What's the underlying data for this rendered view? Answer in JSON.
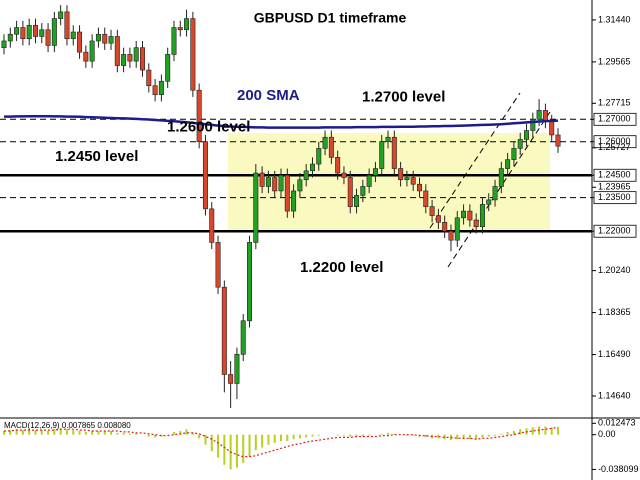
{
  "chart_data": [
    {
      "type": "candlestick",
      "title": "GBPUSD D1 timeframe",
      "up_color": "#22a022",
      "down_color": "#d9472b",
      "ylim": [
        1.1379,
        1.3233
      ],
      "yticks": [
        {
          "value": 1.3144,
          "label": "1.31440"
        },
        {
          "value": 1.29565,
          "label": "1.29565"
        },
        {
          "value": 1.27715,
          "label": "1.27715"
        },
        {
          "value": 1.27,
          "label": "1.27000"
        },
        {
          "value": 1.26,
          "label": "1.26000"
        },
        {
          "value": 1.25727,
          "label": "1.25727"
        },
        {
          "value": 1.245,
          "label": "1.24500"
        },
        {
          "value": 1.23965,
          "label": "1.23965"
        },
        {
          "value": 1.235,
          "label": "1.23500"
        },
        {
          "value": 1.22,
          "label": "1.22000"
        },
        {
          "value": 1.2024,
          "label": "1.20240"
        },
        {
          "value": 1.18365,
          "label": "1.18365"
        },
        {
          "value": 1.1649,
          "label": "1.16490"
        },
        {
          "value": 1.1464,
          "label": "1.14640"
        }
      ],
      "levels": [
        {
          "value": 1.27,
          "style": "dashed",
          "label": "1.2700 level"
        },
        {
          "value": 1.26,
          "style": "dashed",
          "label": "1.2600 level"
        },
        {
          "value": 1.245,
          "style": "solid",
          "label": "1.2450 level"
        },
        {
          "value": 1.235,
          "style": "dashed"
        },
        {
          "value": 1.22,
          "style": "solid",
          "label": "1.2200 level"
        }
      ],
      "sma": {
        "name": "200 SMA",
        "color": "#1c1c8c",
        "values": [
          1.2712,
          1.2712,
          1.2713,
          1.2713,
          1.2714,
          1.2714,
          1.2714,
          1.2714,
          1.2713,
          1.2713,
          1.2712,
          1.2712,
          1.2711,
          1.271,
          1.2709,
          1.2708,
          1.2707,
          1.2706,
          1.2705,
          1.2704,
          1.2703,
          1.2702,
          1.27,
          1.2699,
          1.2697,
          1.2695,
          1.2693,
          1.2691,
          1.2689,
          1.2687,
          1.2684,
          1.2681,
          1.2678,
          1.2675,
          1.2672,
          1.267,
          1.2668,
          1.2667,
          1.2666,
          1.2665,
          1.2664,
          1.2664,
          1.2663,
          1.2663,
          1.2663,
          1.2663,
          1.2663,
          1.2663,
          1.2663,
          1.2663,
          1.2663,
          1.2664,
          1.2664,
          1.2664,
          1.2664,
          1.2664,
          1.2665,
          1.2665,
          1.2665,
          1.2665,
          1.2666,
          1.2666,
          1.2666,
          1.2667,
          1.2667,
          1.2667,
          1.2668,
          1.2668,
          1.2669,
          1.2669,
          1.267,
          1.267,
          1.2671,
          1.2672,
          1.2673,
          1.2674,
          1.2675,
          1.2676,
          1.2677,
          1.2678,
          1.268,
          1.2682,
          1.2684,
          1.2686,
          1.2688,
          1.269,
          1.2692,
          1.2693,
          1.2694
        ]
      },
      "ohlc": [
        [
          1.302,
          1.308,
          1.299,
          1.305
        ],
        [
          1.305,
          1.311,
          1.302,
          1.308
        ],
        [
          1.308,
          1.314,
          1.305,
          1.311
        ],
        [
          1.311,
          1.314,
          1.303,
          1.306
        ],
        [
          1.306,
          1.315,
          1.303,
          1.312
        ],
        [
          1.312,
          1.315,
          1.304,
          1.307
        ],
        [
          1.307,
          1.313,
          1.304,
          1.31
        ],
        [
          1.31,
          1.313,
          1.3,
          1.303
        ],
        [
          1.303,
          1.318,
          1.3,
          1.315
        ],
        [
          1.315,
          1.321,
          1.312,
          1.318
        ],
        [
          1.318,
          1.321,
          1.303,
          1.306
        ],
        [
          1.306,
          1.312,
          1.303,
          1.309
        ],
        [
          1.309,
          1.312,
          1.297,
          1.3
        ],
        [
          1.3,
          1.303,
          1.293,
          1.296
        ],
        [
          1.296,
          1.308,
          1.293,
          1.305
        ],
        [
          1.305,
          1.311,
          1.302,
          1.308
        ],
        [
          1.308,
          1.311,
          1.301,
          1.304
        ],
        [
          1.304,
          1.31,
          1.301,
          1.307
        ],
        [
          1.307,
          1.31,
          1.291,
          1.294
        ],
        [
          1.294,
          1.302,
          1.291,
          1.299
        ],
        [
          1.299,
          1.302,
          1.293,
          1.296
        ],
        [
          1.296,
          1.305,
          1.293,
          1.302
        ],
        [
          1.302,
          1.305,
          1.289,
          1.292
        ],
        [
          1.292,
          1.295,
          1.282,
          1.285
        ],
        [
          1.285,
          1.288,
          1.278,
          1.281
        ],
        [
          1.281,
          1.29,
          1.278,
          1.287
        ],
        [
          1.287,
          1.302,
          1.284,
          1.299
        ],
        [
          1.299,
          1.314,
          1.296,
          1.311
        ],
        [
          1.311,
          1.314,
          1.307,
          1.31
        ],
        [
          1.31,
          1.319,
          1.307,
          1.315
        ],
        [
          1.315,
          1.318,
          1.28,
          1.283
        ],
        [
          1.283,
          1.286,
          1.257,
          1.26
        ],
        [
          1.26,
          1.263,
          1.227,
          1.23
        ],
        [
          1.23,
          1.233,
          1.212,
          1.215
        ],
        [
          1.215,
          1.218,
          1.192,
          1.195
        ],
        [
          1.195,
          1.198,
          1.148,
          1.156
        ],
        [
          1.156,
          1.162,
          1.141,
          1.152
        ],
        [
          1.152,
          1.168,
          1.145,
          1.165
        ],
        [
          1.165,
          1.183,
          1.162,
          1.18
        ],
        [
          1.18,
          1.218,
          1.177,
          1.215
        ],
        [
          1.215,
          1.25,
          1.212,
          1.246
        ],
        [
          1.246,
          1.249,
          1.237,
          1.24
        ],
        [
          1.24,
          1.247,
          1.237,
          1.244
        ],
        [
          1.244,
          1.247,
          1.235,
          1.238
        ],
        [
          1.238,
          1.248,
          1.235,
          1.245
        ],
        [
          1.245,
          1.248,
          1.226,
          1.229
        ],
        [
          1.229,
          1.241,
          1.226,
          1.238
        ],
        [
          1.238,
          1.246,
          1.235,
          1.243
        ],
        [
          1.243,
          1.25,
          1.24,
          1.247
        ],
        [
          1.247,
          1.253,
          1.244,
          1.25
        ],
        [
          1.25,
          1.26,
          1.247,
          1.257
        ],
        [
          1.257,
          1.265,
          1.254,
          1.262
        ],
        [
          1.262,
          1.265,
          1.25,
          1.253
        ],
        [
          1.253,
          1.256,
          1.243,
          1.246
        ],
        [
          1.246,
          1.249,
          1.241,
          1.244
        ],
        [
          1.244,
          1.247,
          1.228,
          1.231
        ],
        [
          1.231,
          1.239,
          1.228,
          1.236
        ],
        [
          1.236,
          1.243,
          1.233,
          1.24
        ],
        [
          1.24,
          1.248,
          1.237,
          1.245
        ],
        [
          1.245,
          1.251,
          1.242,
          1.248
        ],
        [
          1.248,
          1.263,
          1.245,
          1.26
        ],
        [
          1.26,
          1.265,
          1.257,
          1.262
        ],
        [
          1.262,
          1.265,
          1.245,
          1.248
        ],
        [
          1.248,
          1.251,
          1.24,
          1.243
        ],
        [
          1.243,
          1.247,
          1.24,
          1.244
        ],
        [
          1.244,
          1.247,
          1.238,
          1.241
        ],
        [
          1.241,
          1.244,
          1.235,
          1.238
        ],
        [
          1.238,
          1.241,
          1.228,
          1.231
        ],
        [
          1.231,
          1.234,
          1.224,
          1.227
        ],
        [
          1.227,
          1.23,
          1.221,
          1.224
        ],
        [
          1.224,
          1.227,
          1.217,
          1.22
        ],
        [
          1.22,
          1.223,
          1.211,
          1.216
        ],
        [
          1.216,
          1.229,
          1.213,
          1.226
        ],
        [
          1.226,
          1.232,
          1.223,
          1.229
        ],
        [
          1.229,
          1.232,
          1.222,
          1.225
        ],
        [
          1.225,
          1.228,
          1.219,
          1.222
        ],
        [
          1.222,
          1.235,
          1.219,
          1.232
        ],
        [
          1.232,
          1.237,
          1.229,
          1.234
        ],
        [
          1.234,
          1.243,
          1.231,
          1.24
        ],
        [
          1.24,
          1.251,
          1.237,
          1.248
        ],
        [
          1.248,
          1.255,
          1.245,
          1.252
        ],
        [
          1.252,
          1.26,
          1.249,
          1.257
        ],
        [
          1.257,
          1.264,
          1.254,
          1.261
        ],
        [
          1.261,
          1.268,
          1.258,
          1.265
        ],
        [
          1.265,
          1.273,
          1.262,
          1.27
        ],
        [
          1.27,
          1.279,
          1.267,
          1.274
        ],
        [
          1.274,
          1.277,
          1.266,
          1.269
        ],
        [
          1.269,
          1.272,
          1.26,
          1.263
        ],
        [
          1.263,
          1.266,
          1.255,
          1.258
        ]
      ]
    },
    {
      "type": "bar",
      "title": "MACD(12,26,9) 0.007865 0.008080",
      "color": "#b9cf1e",
      "signal_color": "#e02020",
      "ylim": [
        -0.0497,
        0.0183
      ],
      "yticks": [
        0.012473,
        {
          "value": 0,
          "label": "0.00"
        },
        -0.038099
      ],
      "values": [
        0.004,
        0.005,
        0.006,
        0.005,
        0.006,
        0.005,
        0.005,
        0.004,
        0.006,
        0.007,
        0.006,
        0.005,
        0.004,
        0.003,
        0.004,
        0.004,
        0.004,
        0.004,
        0.002,
        0.002,
        0.001,
        0.002,
        0.0,
        -0.002,
        -0.003,
        -0.002,
        0.0,
        0.003,
        0.004,
        0.006,
        0.002,
        -0.004,
        -0.011,
        -0.018,
        -0.025,
        -0.033,
        -0.038,
        -0.036,
        -0.031,
        -0.024,
        -0.017,
        -0.014,
        -0.011,
        -0.009,
        -0.007,
        -0.007,
        -0.005,
        -0.004,
        -0.003,
        -0.002,
        -0.001,
        0.0,
        0.0,
        -0.001,
        -0.001,
        -0.002,
        -0.002,
        -0.002,
        -0.001,
        0.0,
        0.001,
        0.002,
        0.001,
        0.0,
        -0.001,
        -0.001,
        -0.002,
        -0.003,
        -0.004,
        -0.004,
        -0.005,
        -0.006,
        -0.005,
        -0.005,
        -0.005,
        -0.005,
        -0.003,
        -0.002,
        -0.001,
        0.001,
        0.003,
        0.004,
        0.006,
        0.007,
        0.008,
        0.009,
        0.009,
        0.008,
        0.008
      ],
      "signal": [
        0.004,
        0.004,
        0.005,
        0.005,
        0.005,
        0.005,
        0.005,
        0.005,
        0.005,
        0.006,
        0.006,
        0.006,
        0.005,
        0.005,
        0.004,
        0.004,
        0.004,
        0.004,
        0.004,
        0.003,
        0.003,
        0.002,
        0.002,
        0.001,
        0.0,
        -0.001,
        -0.001,
        0.0,
        0.001,
        0.002,
        0.002,
        0.001,
        -0.002,
        -0.005,
        -0.009,
        -0.014,
        -0.019,
        -0.022,
        -0.024,
        -0.024,
        -0.023,
        -0.021,
        -0.019,
        -0.017,
        -0.015,
        -0.013,
        -0.011,
        -0.01,
        -0.008,
        -0.007,
        -0.006,
        -0.005,
        -0.004,
        -0.003,
        -0.003,
        -0.003,
        -0.002,
        -0.002,
        -0.002,
        -0.002,
        -0.001,
        -0.001,
        0.0,
        0.0,
        0.0,
        0.0,
        -0.001,
        -0.001,
        -0.002,
        -0.002,
        -0.003,
        -0.003,
        -0.004,
        -0.004,
        -0.004,
        -0.005,
        -0.004,
        -0.004,
        -0.003,
        -0.002,
        -0.001,
        0.0,
        0.002,
        0.003,
        0.004,
        0.005,
        0.006,
        0.007,
        0.008
      ]
    }
  ]
}
